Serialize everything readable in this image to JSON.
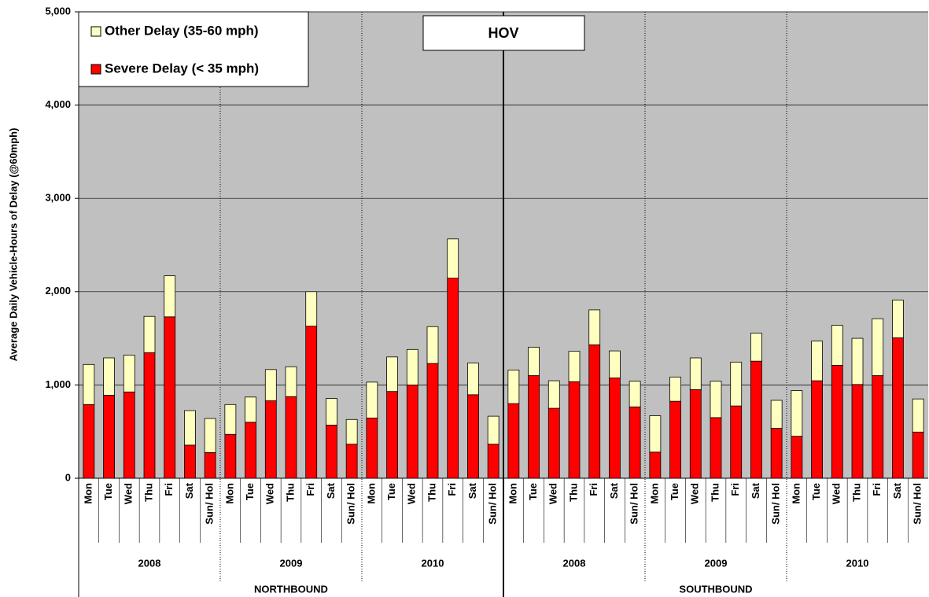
{
  "chart_data": {
    "type": "stacked-bar",
    "title": "HOV",
    "y_label": "Average Daily Vehicle-Hours of Delay (@60mph)",
    "categories": [
      "Mon",
      "Tue",
      "Wed",
      "Thu",
      "Fri",
      "Sat",
      "Sun/ Hol",
      "Mon",
      "Tue",
      "Wed",
      "Thu",
      "Fri",
      "Sat",
      "Sun/ Hol",
      "Mon",
      "Tue",
      "Wed",
      "Thu",
      "Fri",
      "Sat",
      "Sun/ Hol",
      "Mon",
      "Tue",
      "Wed",
      "Thu",
      "Fri",
      "Sat",
      "Sun/ Hol",
      "Mon",
      "Tue",
      "Wed",
      "Thu",
      "Fri",
      "Sat",
      "Sun/ Hol",
      "Mon",
      "Tue",
      "Wed",
      "Thu",
      "Fri",
      "Sat",
      "Sun/ Hol"
    ],
    "year_groups": [
      "2008",
      "2009",
      "2010",
      "2008",
      "2009",
      "2010"
    ],
    "direction_groups": [
      "NORTHBOUND",
      "SOUTHBOUND"
    ],
    "series": [
      {
        "name": "Severe Delay (< 35 mph)",
        "color": "#ff0000",
        "values": [
          790,
          890,
          925,
          1345,
          1730,
          355,
          275,
          470,
          600,
          830,
          875,
          1630,
          570,
          365,
          645,
          930,
          1000,
          1230,
          2145,
          895,
          365,
          800,
          1100,
          750,
          1035,
          1430,
          1075,
          765,
          280,
          825,
          950,
          650,
          775,
          1255,
          535,
          450,
          1045,
          1210,
          1005,
          1100,
          1505,
          495
        ]
      },
      {
        "name": "Other Delay (35-60 mph)",
        "color": "#ffffc0",
        "values": [
          430,
          400,
          395,
          390,
          440,
          370,
          365,
          320,
          270,
          335,
          320,
          370,
          285,
          265,
          385,
          370,
          380,
          395,
          420,
          340,
          300,
          360,
          305,
          295,
          325,
          375,
          290,
          275,
          390,
          260,
          340,
          390,
          470,
          300,
          300,
          490,
          425,
          430,
          495,
          610,
          405,
          355
        ]
      }
    ],
    "ylim": [
      0,
      5000
    ],
    "yticks": [
      0,
      {
        "value": 1000,
        "label": "1,000"
      },
      {
        "value": 2000,
        "label": "2,000"
      },
      {
        "value": 3000,
        "label": "3,000"
      },
      {
        "value": 4000,
        "label": "4,000"
      },
      {
        "value": 5000,
        "label": "5,000"
      }
    ],
    "grid": true,
    "background": "#c0c0c0",
    "legend": "upper left"
  }
}
